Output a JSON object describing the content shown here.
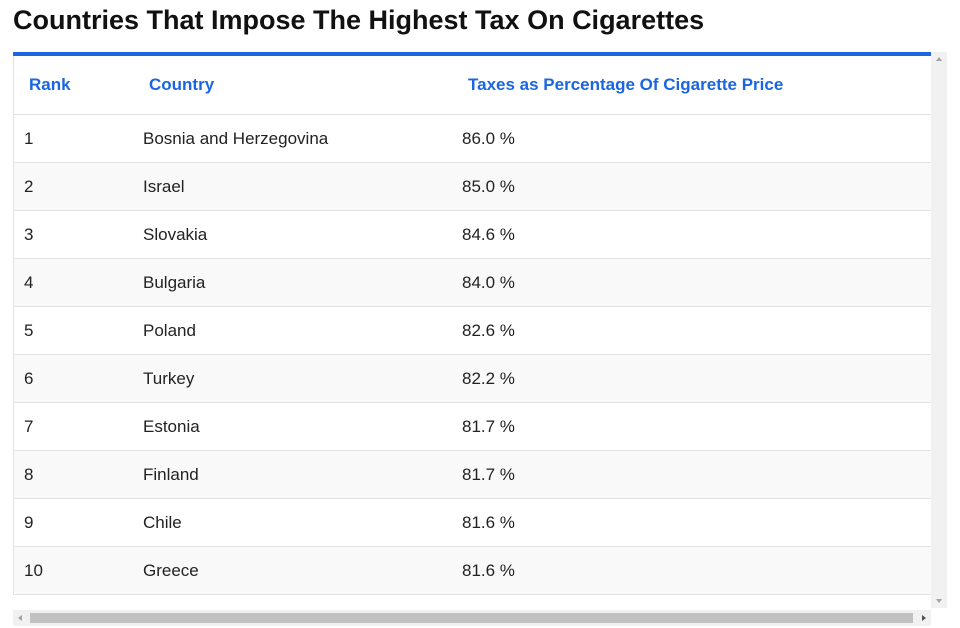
{
  "header": {
    "title": "Countries That Impose The Highest Tax On Cigarettes"
  },
  "table": {
    "columns": [
      "Rank",
      "Country",
      "Taxes as Percentage Of Cigarette Price"
    ],
    "rows": [
      [
        "1",
        "Bosnia and Herzegovina",
        "86.0 %"
      ],
      [
        "2",
        "Israel",
        "85.0 %"
      ],
      [
        "3",
        "Slovakia",
        "84.6 %"
      ],
      [
        "4",
        "Bulgaria",
        "84.0 %"
      ],
      [
        "5",
        "Poland",
        "82.6 %"
      ],
      [
        "6",
        "Turkey",
        "82.2 %"
      ],
      [
        "7",
        "Estonia",
        "81.7 %"
      ],
      [
        "8",
        "Finland",
        "81.7 %"
      ],
      [
        "9",
        "Chile",
        "81.6 %"
      ],
      [
        "10",
        "Greece",
        "81.6 %"
      ]
    ]
  }
}
